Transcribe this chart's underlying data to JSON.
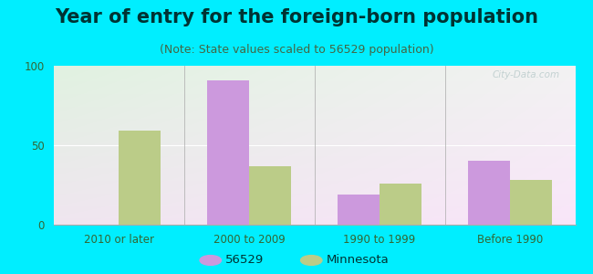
{
  "title": "Year of entry for the foreign-born population",
  "subtitle": "(Note: State values scaled to 56529 population)",
  "categories": [
    "2010 or later",
    "2000 to 2009",
    "1990 to 1999",
    "Before 1990"
  ],
  "series_56529": [
    0,
    91,
    19,
    40
  ],
  "series_minnesota": [
    59,
    37,
    26,
    28
  ],
  "color_56529": "#cc99dd",
  "color_minnesota": "#bbcc88",
  "legend_56529": "56529",
  "legend_minnesota": "Minnesota",
  "ylim": [
    0,
    100
  ],
  "yticks": [
    0,
    50,
    100
  ],
  "background_outer": "#00eeff",
  "bar_width": 0.32,
  "title_fontsize": 15,
  "subtitle_fontsize": 9,
  "tick_fontsize": 8.5,
  "legend_fontsize": 9.5,
  "watermark": "City-Data.com"
}
